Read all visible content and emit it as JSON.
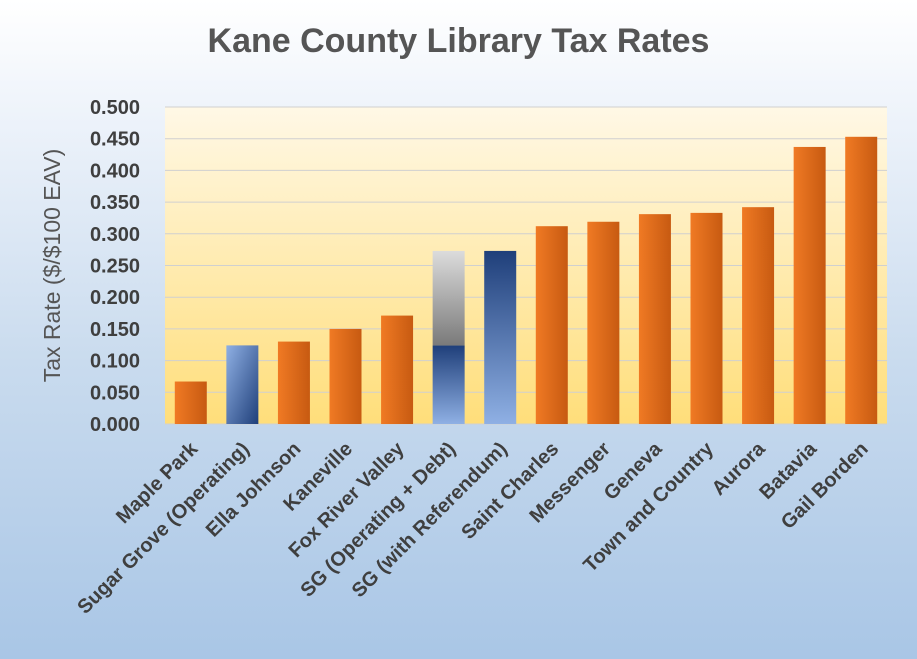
{
  "chart_data": {
    "type": "bar",
    "title": "Kane County Library Tax Rates",
    "xlabel": "",
    "ylabel": "Tax Rate ($/$100 EAV)",
    "ylim": [
      0,
      0.5
    ],
    "yticks": [
      "0.000",
      "0.050",
      "0.100",
      "0.150",
      "0.200",
      "0.250",
      "0.300",
      "0.350",
      "0.400",
      "0.450",
      "0.500"
    ],
    "grid": true,
    "categories": [
      "Maple Park",
      "Sugar Grove (Operating)",
      "Ella Johnson",
      "Kaneville",
      "Fox River Valley",
      "SG (Operating + Debt)",
      "SG (with Referendum)",
      "Saint Charles",
      "Messenger",
      "Geneva",
      "Town and Country",
      "Aurora",
      "Batavia",
      "Gail Borden"
    ],
    "series": [
      {
        "values": [
          0.067,
          0.124,
          0.13,
          0.15,
          0.171,
          0.124,
          0.273,
          0.312,
          0.319,
          0.331,
          0.333,
          0.342,
          0.437,
          0.453
        ]
      },
      {
        "values": [
          0,
          0,
          0,
          0,
          0,
          0.149,
          0,
          0,
          0,
          0,
          0,
          0,
          0,
          0
        ]
      }
    ],
    "bar_styles": [
      "orange",
      "blue",
      "orange",
      "orange",
      "orange",
      "blue",
      "blue",
      "orange",
      "orange",
      "orange",
      "orange",
      "orange",
      "orange",
      "orange"
    ],
    "colors": {
      "orange_light": "#f07a24",
      "orange_dark": "#c75a11",
      "blue_light": "#8fb0e4",
      "blue_dark": "#1f3f7a",
      "gray_light": "#dcdcdc",
      "gray_dark": "#7a7a7a",
      "plot_top": "#fff8e6",
      "plot_bottom": "#ffde7a",
      "grid": "#d0d0d0"
    }
  }
}
